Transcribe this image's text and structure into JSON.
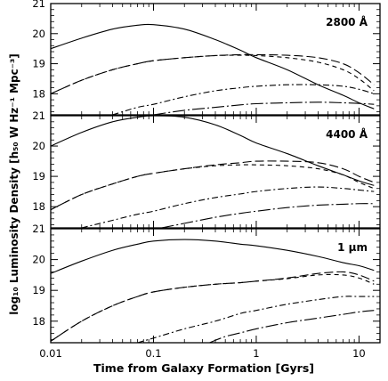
{
  "chart_data": [
    {
      "type": "line",
      "annotation": "2800 Å",
      "xscale": "log",
      "xlim": [
        0.01,
        16
      ],
      "ylim": [
        17.3,
        21
      ],
      "yticks": [
        18,
        19,
        20,
        21
      ],
      "series": [
        {
          "style": "solid",
          "x": [
            0.01,
            0.02,
            0.04,
            0.07,
            0.1,
            0.2,
            0.4,
            0.7,
            1,
            2,
            4,
            7,
            10,
            14
          ],
          "y": [
            19.5,
            19.85,
            20.15,
            20.28,
            20.3,
            20.15,
            19.8,
            19.45,
            19.2,
            18.8,
            18.3,
            17.95,
            17.7,
            17.5
          ]
        },
        {
          "style": "long-dash",
          "x": [
            0.01,
            0.02,
            0.04,
            0.07,
            0.1,
            0.2,
            0.4,
            0.7,
            1,
            2,
            4,
            7,
            10,
            14
          ],
          "y": [
            18.0,
            18.45,
            18.8,
            19.0,
            19.1,
            19.2,
            19.27,
            19.3,
            19.3,
            19.28,
            19.2,
            19.0,
            18.7,
            18.3
          ]
        },
        {
          "style": "short-dash",
          "x": [
            0.01,
            0.02,
            0.04,
            0.07,
            0.1,
            0.2,
            0.4,
            0.7,
            1,
            2,
            4,
            7,
            10,
            14
          ],
          "y": [
            18.0,
            18.45,
            18.8,
            19.0,
            19.1,
            19.2,
            19.27,
            19.28,
            19.27,
            19.2,
            19.05,
            18.8,
            18.5,
            18.1
          ]
        },
        {
          "style": "dash-dot",
          "x": [
            0.04,
            0.07,
            0.1,
            0.2,
            0.4,
            0.7,
            1,
            2,
            4,
            7,
            10,
            14
          ],
          "y": [
            17.3,
            17.55,
            17.65,
            17.9,
            18.1,
            18.2,
            18.25,
            18.3,
            18.3,
            18.25,
            18.15,
            18.0
          ]
        },
        {
          "style": "long-dash-dot",
          "x": [
            0.1,
            0.2,
            0.4,
            0.7,
            1,
            2,
            4,
            7,
            10,
            14
          ],
          "y": [
            17.3,
            17.45,
            17.55,
            17.63,
            17.67,
            17.7,
            17.72,
            17.7,
            17.68,
            17.65
          ]
        }
      ]
    },
    {
      "type": "line",
      "annotation": "4400 Å",
      "xscale": "log",
      "xlim": [
        0.01,
        16
      ],
      "ylim": [
        17.3,
        21
      ],
      "yticks": [
        18,
        19,
        20,
        21
      ],
      "series": [
        {
          "style": "solid",
          "x": [
            0.01,
            0.02,
            0.04,
            0.07,
            0.1,
            0.2,
            0.4,
            0.7,
            1,
            2,
            4,
            7,
            10,
            14
          ],
          "y": [
            20.0,
            20.45,
            20.8,
            20.95,
            21.0,
            20.95,
            20.7,
            20.35,
            20.1,
            19.75,
            19.35,
            19.05,
            18.85,
            18.7
          ]
        },
        {
          "style": "long-dash",
          "x": [
            0.01,
            0.02,
            0.04,
            0.07,
            0.1,
            0.2,
            0.4,
            0.7,
            1,
            2,
            4,
            7,
            10,
            14
          ],
          "y": [
            17.9,
            18.4,
            18.75,
            19.0,
            19.1,
            19.25,
            19.38,
            19.45,
            19.5,
            19.5,
            19.45,
            19.25,
            19.0,
            18.8
          ]
        },
        {
          "style": "short-dash",
          "x": [
            0.01,
            0.02,
            0.04,
            0.07,
            0.1,
            0.2,
            0.4,
            0.7,
            1,
            2,
            4,
            7,
            10,
            14
          ],
          "y": [
            17.9,
            18.4,
            18.75,
            19.0,
            19.1,
            19.25,
            19.35,
            19.38,
            19.38,
            19.35,
            19.25,
            19.05,
            18.8,
            18.6
          ]
        },
        {
          "style": "dash-dot",
          "x": [
            0.02,
            0.04,
            0.07,
            0.1,
            0.2,
            0.4,
            0.7,
            1,
            2,
            4,
            7,
            10,
            14
          ],
          "y": [
            17.3,
            17.55,
            17.75,
            17.85,
            18.1,
            18.3,
            18.42,
            18.5,
            18.6,
            18.65,
            18.6,
            18.55,
            18.5
          ]
        },
        {
          "style": "long-dash-dot",
          "x": [
            0.12,
            0.2,
            0.4,
            0.7,
            1,
            2,
            4,
            7,
            10,
            14
          ],
          "y": [
            17.3,
            17.45,
            17.65,
            17.78,
            17.85,
            17.97,
            18.05,
            18.08,
            18.1,
            18.1
          ]
        }
      ]
    },
    {
      "type": "line",
      "annotation": "1 μm",
      "xscale": "log",
      "xlim": [
        0.01,
        16
      ],
      "ylim": [
        17.3,
        21
      ],
      "yticks": [
        18,
        19,
        20,
        21
      ],
      "xticks": [
        0.01,
        0.1,
        1,
        10
      ],
      "xticklabels": [
        "0.01",
        "0.1",
        "1",
        "10"
      ],
      "series": [
        {
          "style": "solid",
          "x": [
            0.01,
            0.02,
            0.04,
            0.07,
            0.1,
            0.2,
            0.4,
            0.7,
            1,
            2,
            4,
            7,
            10,
            14
          ],
          "y": [
            19.55,
            19.95,
            20.3,
            20.5,
            20.6,
            20.65,
            20.6,
            20.5,
            20.45,
            20.3,
            20.1,
            19.9,
            19.8,
            19.65
          ]
        },
        {
          "style": "long-dash",
          "x": [
            0.01,
            0.02,
            0.04,
            0.07,
            0.1,
            0.2,
            0.4,
            0.7,
            1,
            2,
            4,
            7,
            10,
            14
          ],
          "y": [
            17.35,
            18.0,
            18.5,
            18.8,
            18.95,
            19.1,
            19.2,
            19.25,
            19.3,
            19.4,
            19.55,
            19.6,
            19.5,
            19.3
          ]
        },
        {
          "style": "short-dash",
          "x": [
            0.01,
            0.02,
            0.04,
            0.07,
            0.1,
            0.2,
            0.4,
            0.7,
            1,
            2,
            4,
            7,
            10,
            14
          ],
          "y": [
            17.35,
            18.0,
            18.5,
            18.8,
            18.95,
            19.1,
            19.2,
            19.25,
            19.3,
            19.38,
            19.5,
            19.5,
            19.4,
            19.2
          ]
        },
        {
          "style": "dash-dot",
          "x": [
            0.07,
            0.1,
            0.2,
            0.4,
            0.7,
            1,
            2,
            4,
            7,
            10,
            14
          ],
          "y": [
            17.3,
            17.45,
            17.75,
            18.0,
            18.25,
            18.35,
            18.55,
            18.7,
            18.8,
            18.8,
            18.8
          ]
        },
        {
          "style": "long-dash-dot",
          "x": [
            0.35,
            0.5,
            0.7,
            1,
            2,
            4,
            7,
            10,
            14
          ],
          "y": [
            17.3,
            17.5,
            17.62,
            17.75,
            17.95,
            18.1,
            18.22,
            18.3,
            18.35
          ]
        }
      ]
    }
  ],
  "xlabel": "Time from Galaxy Formation [Gyrs]",
  "ylabel": "log₁₀ Luminosity Density [h₅₀ W Hz⁻¹ Mpc⁻³]"
}
